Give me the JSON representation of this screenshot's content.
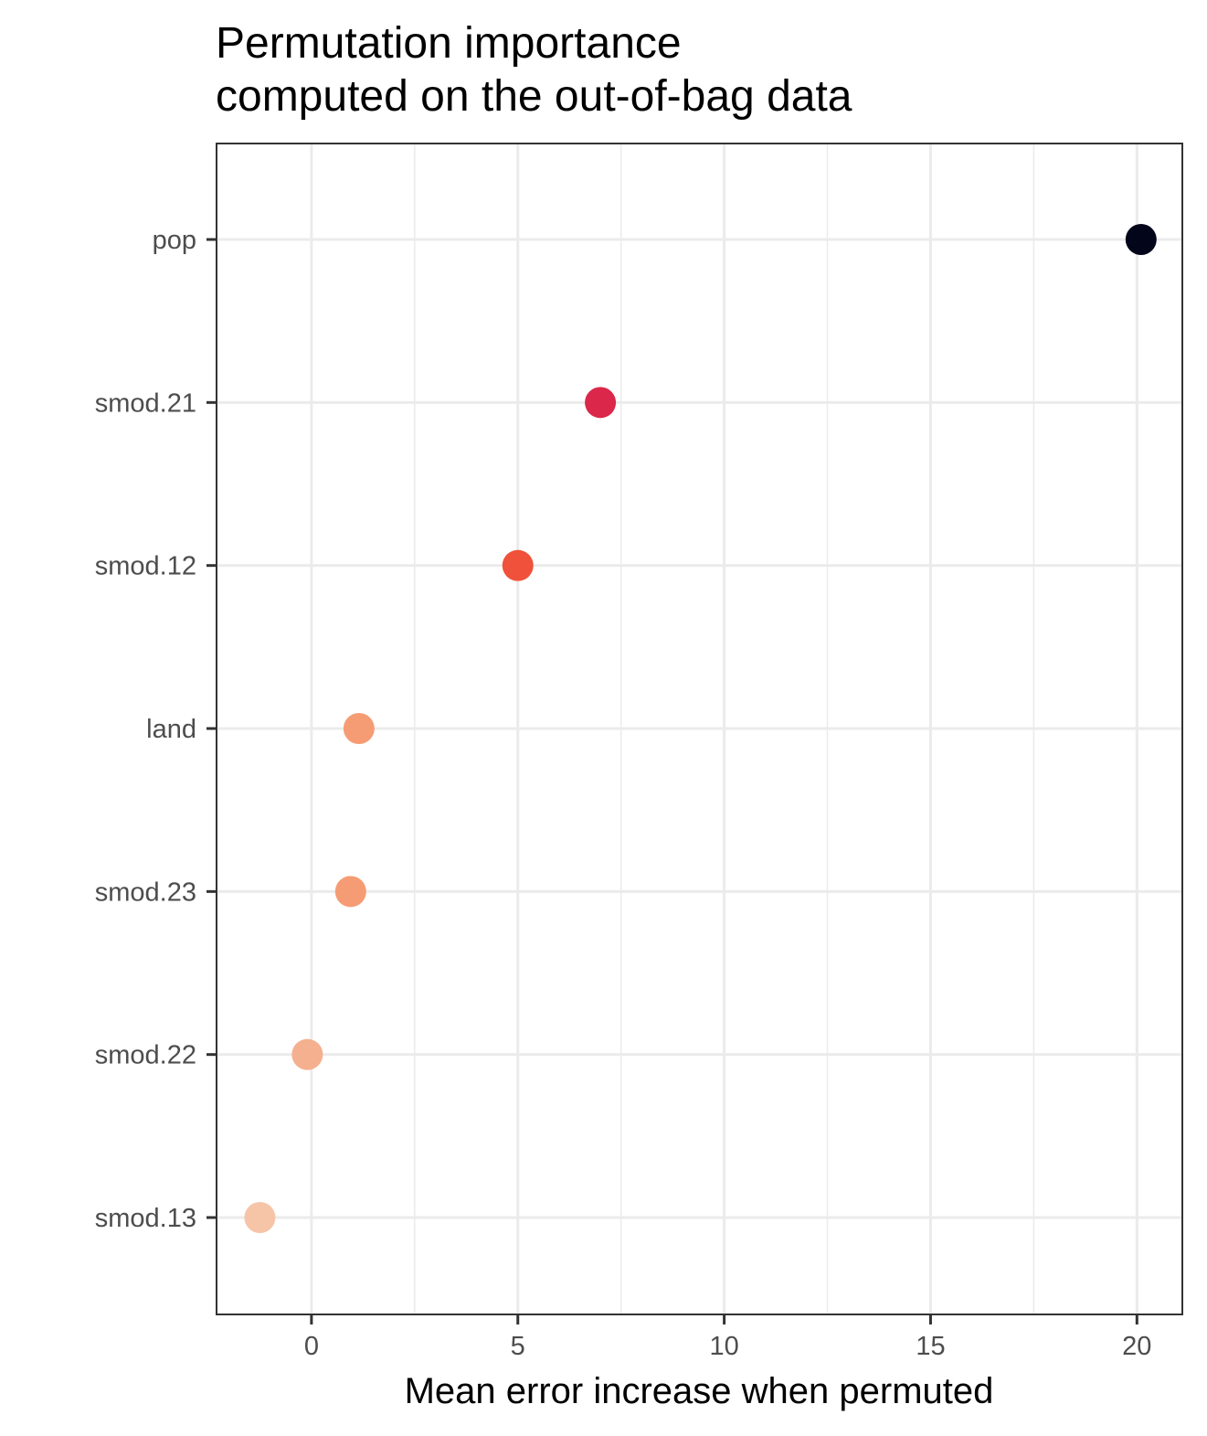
{
  "chart_data": {
    "type": "scatter",
    "title_lines": [
      "Permutation importance",
      "computed on the out-of-bag data"
    ],
    "xlabel": "Mean error increase when permuted",
    "ylabel": "",
    "xlim": [
      -2.3,
      21.1
    ],
    "x_ticks": [
      0,
      5,
      10,
      15,
      20
    ],
    "x_tick_labels": [
      "0",
      "5",
      "10",
      "15",
      "20"
    ],
    "x_minor_ticks": [
      -2.5,
      2.5,
      7.5,
      12.5,
      17.5
    ],
    "grid": true,
    "legend": "none",
    "categories": [
      "pop",
      "smod.21",
      "smod.12",
      "land",
      "smod.23",
      "smod.22",
      "smod.13"
    ],
    "values": [
      20.1,
      7.0,
      5.0,
      1.15,
      0.95,
      -0.1,
      -1.25
    ],
    "point_colors": [
      "#03051a",
      "#db2749",
      "#f0513a",
      "#f69c74",
      "#f69c74",
      "#f5b08f",
      "#f6c5a8"
    ]
  }
}
